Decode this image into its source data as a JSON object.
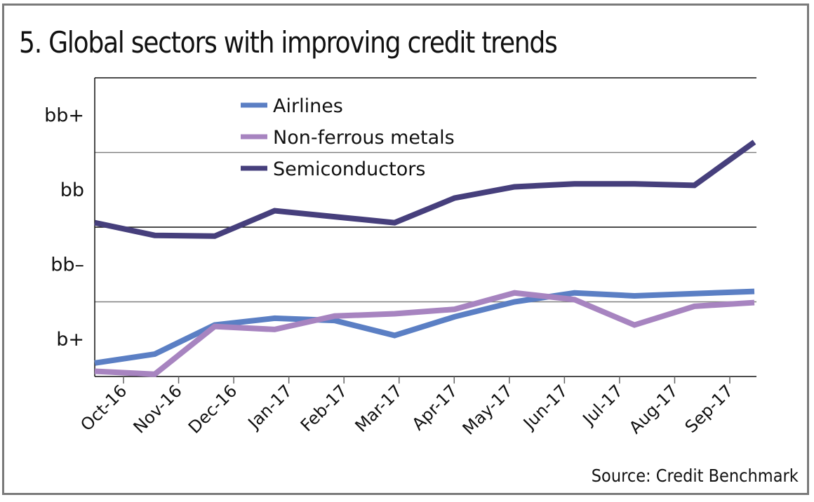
{
  "chart_data": {
    "type": "line",
    "title": "5. Global sectors with improving credit trends",
    "source": "Source: Credit Benchmark",
    "xlabel": "",
    "ylabel": "",
    "categories": [
      "Oct-16",
      "Nov-16",
      "Dec-16",
      "Jan-17",
      "Feb-17",
      "Mar-17",
      "Apr-17",
      "May-17",
      "Jun-17",
      "Jul-17",
      "Aug-17",
      "Sep-17"
    ],
    "y_ticks": [
      {
        "label": "b+",
        "value": 0.5
      },
      {
        "label": "bb–",
        "value": 1.5
      },
      {
        "label": "bb",
        "value": 2.5
      },
      {
        "label": "bb+",
        "value": 3.5
      }
    ],
    "y_gridlines": [
      1,
      2,
      3,
      4
    ],
    "ylim": [
      0,
      4
    ],
    "grid": true,
    "legend_position": "top-center",
    "series": [
      {
        "name": "Airlines",
        "color": "#5b7fc4",
        "values": [
          0.18,
          0.3,
          0.69,
          0.78,
          0.75,
          0.55,
          0.8,
          1.0,
          1.12,
          1.08,
          1.11,
          1.14
        ]
      },
      {
        "name": "Non-ferrous metals",
        "color": "#a784c0",
        "values": [
          0.07,
          0.03,
          0.67,
          0.63,
          0.81,
          0.84,
          0.9,
          1.12,
          1.03,
          0.69,
          0.94,
          0.99
        ]
      },
      {
        "name": "Semiconductors",
        "color": "#463f7c",
        "values": [
          2.06,
          1.89,
          1.88,
          2.22,
          2.14,
          2.06,
          2.39,
          2.54,
          2.58,
          2.58,
          2.56,
          3.14
        ]
      }
    ]
  }
}
